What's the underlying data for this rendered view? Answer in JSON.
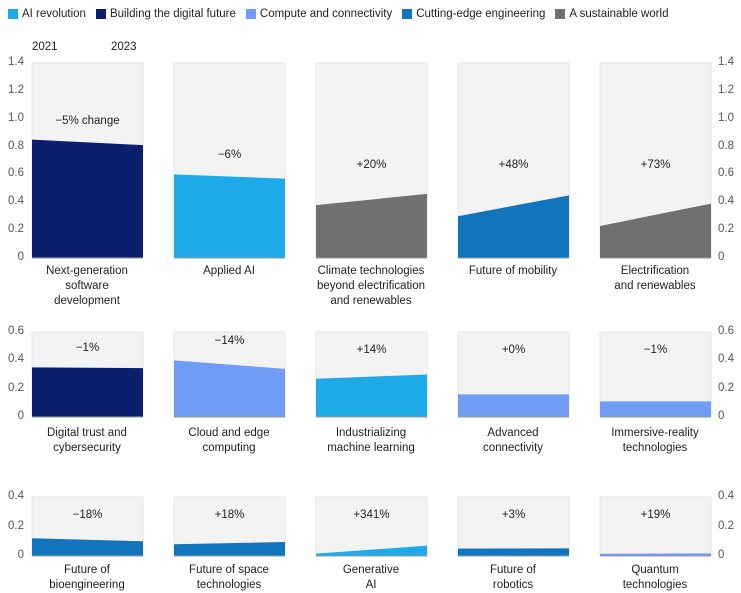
{
  "legend": [
    {
      "name": "AI revolution",
      "color": "#1ea9e8"
    },
    {
      "name": "Building the digital future",
      "color": "#0b1f6f"
    },
    {
      "name": "Compute and connectivity",
      "color": "#6f9cf4"
    },
    {
      "name": "Cutting-edge engineering",
      "color": "#1175be"
    },
    {
      "name": "A sustainable world",
      "color": "#707070"
    }
  ],
  "chart_data": [
    {
      "type": "area",
      "x": [
        "2021",
        "2023"
      ],
      "ylim": [
        0,
        1.4
      ],
      "yticks": [
        0,
        0.2,
        0.4,
        0.6,
        0.8,
        {
          "value": 1,
          "label": "1.0"
        },
        1.2,
        1.4
      ],
      "panels": [
        {
          "title": "Next-generation\nsoftware\ndevelopment",
          "annotation": "−5% change",
          "color": "#0b1f6f",
          "values": [
            0.85,
            0.81
          ]
        },
        {
          "title": "Applied AI",
          "annotation": "−6%",
          "color": "#1ea9e8",
          "values": [
            0.6,
            0.57
          ]
        },
        {
          "title": "Climate technologies\nbeyond electrification\nand renewables",
          "annotation": "+20%",
          "color": "#707070",
          "values": [
            0.38,
            0.46
          ]
        },
        {
          "title": "Future of mobility",
          "annotation": "+48%",
          "color": "#1175be",
          "values": [
            0.3,
            0.45
          ]
        },
        {
          "title": "Electrification\nand renewables",
          "annotation": "+73%",
          "color": "#707070",
          "values": [
            0.23,
            0.39
          ]
        }
      ]
    },
    {
      "type": "area",
      "ylim": [
        0,
        0.6
      ],
      "yticks": [
        0,
        0.2,
        0.4,
        0.6
      ],
      "panels": [
        {
          "title": "Digital trust and\ncybersecurity",
          "annotation": "−1%",
          "color": "#0b1f6f",
          "values": [
            0.35,
            0.345
          ]
        },
        {
          "title": "Cloud and edge\ncomputing",
          "annotation": "−14%",
          "color": "#6f9cf4",
          "values": [
            0.4,
            0.34
          ]
        },
        {
          "title": "Industrializing\nmachine learning",
          "annotation": "+14%",
          "color": "#1ea9e8",
          "values": [
            0.27,
            0.3
          ]
        },
        {
          "title": "Advanced\nconnectivity",
          "annotation": "+0%",
          "color": "#6f9cf4",
          "values": [
            0.16,
            0.16
          ]
        },
        {
          "title": "Immersive-reality\ntechnologies",
          "annotation": "−1%",
          "color": "#6f9cf4",
          "values": [
            0.11,
            0.11
          ]
        }
      ]
    },
    {
      "type": "area",
      "ylim": [
        0,
        0.4
      ],
      "yticks": [
        0,
        0.2,
        0.4
      ],
      "panels": [
        {
          "title": "Future of\nbioengineering",
          "annotation": "−18%",
          "color": "#1175be",
          "values": [
            0.12,
            0.1
          ]
        },
        {
          "title": "Future of space\ntechnologies",
          "annotation": "+18%",
          "color": "#1175be",
          "values": [
            0.08,
            0.095
          ]
        },
        {
          "title": "Generative\nAI",
          "annotation": "+341%",
          "color": "#1ea9e8",
          "values": [
            0.016,
            0.07
          ]
        },
        {
          "title": "Future of\nrobotics",
          "annotation": "+3%",
          "color": "#1175be",
          "values": [
            0.05,
            0.052
          ]
        },
        {
          "title": "Quantum\ntechnologies",
          "annotation": "+19%",
          "color": "#6f9cf4",
          "values": [
            0.015,
            0.018
          ]
        }
      ]
    }
  ]
}
